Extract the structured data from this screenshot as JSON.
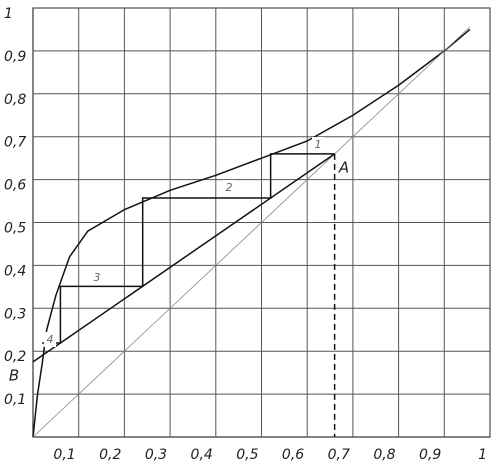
{
  "chart_data": {
    "type": "line",
    "xlim": [
      0,
      1
    ],
    "ylim": [
      0,
      1
    ],
    "grid": true,
    "xticks": [
      {
        "value": 0.1,
        "label": "0,1"
      },
      {
        "value": 0.2,
        "label": "0,2"
      },
      {
        "value": 0.3,
        "label": "0,3"
      },
      {
        "value": 0.4,
        "label": "0,4"
      },
      {
        "value": 0.5,
        "label": "0,5"
      },
      {
        "value": 0.6,
        "label": "0,6"
      },
      {
        "value": 0.7,
        "label": "0,7"
      },
      {
        "value": 0.8,
        "label": "0,8"
      },
      {
        "value": 0.9,
        "label": "0,9"
      },
      1
    ],
    "yticks": [
      {
        "value": 0.1,
        "label": "0,1"
      },
      {
        "value": 0.2,
        "label": "0,2"
      },
      {
        "value": 0.3,
        "label": "0,3"
      },
      {
        "value": 0.4,
        "label": "0,4"
      },
      {
        "value": 0.5,
        "label": "0,5"
      },
      {
        "value": 0.6,
        "label": "0,6"
      },
      {
        "value": 0.7,
        "label": "0,7"
      },
      {
        "value": 0.8,
        "label": "0,8"
      },
      {
        "value": 0.9,
        "label": "0,9"
      },
      1
    ],
    "lines": [
      {
        "color": "#111",
        "x": [
          0,
          0.01,
          0.02,
          0.03,
          0.05,
          0.08,
          0.12,
          0.2,
          0.3,
          0.4,
          0.5,
          0.6,
          0.7,
          0.8,
          0.9,
          0.956
        ],
        "y": [
          0,
          0.1,
          0.17,
          0.25,
          0.33,
          0.42,
          0.48,
          0.53,
          0.575,
          0.61,
          0.65,
          0.69,
          0.75,
          0.82,
          0.9,
          0.95
        ]
      },
      {
        "color": "#888",
        "x": [
          0,
          0.956
        ],
        "y": [
          0,
          0.956
        ]
      },
      {
        "color": "#111",
        "x": [
          0,
          0.66
        ],
        "y": [
          0.175,
          0.66
        ]
      },
      {
        "color": "#111",
        "x": [
          0.66,
          0.52,
          0.52,
          0.24,
          0.24,
          0.06,
          0.06,
          0.02
        ],
        "y": [
          0.66,
          0.66,
          0.557,
          0.557,
          0.351,
          0.351,
          0.219,
          0.219
        ]
      },
      {
        "color": "#111",
        "dashed": true,
        "x": [
          0.66,
          0.66
        ],
        "y": [
          0.66,
          0
        ]
      }
    ],
    "annotations": [
      "1",
      "2",
      "3",
      "4",
      "A",
      "B"
    ]
  }
}
